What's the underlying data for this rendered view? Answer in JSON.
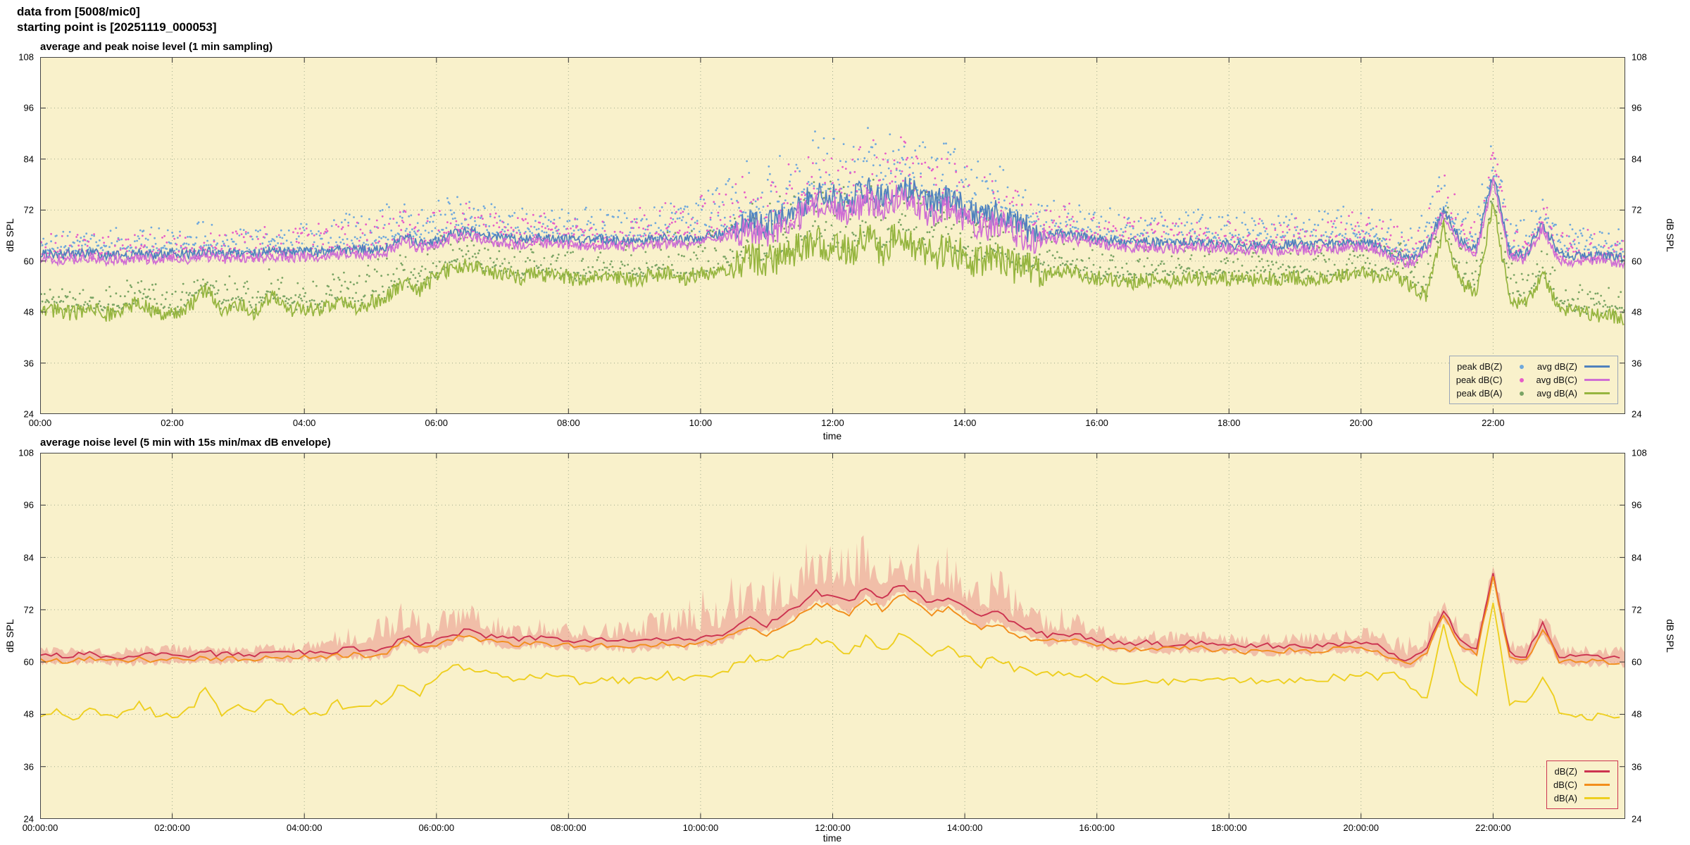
{
  "header": {
    "line1": "data from [5008/mic0]",
    "line2": "starting point is [20251119_000053]"
  },
  "colors": {
    "page_bg": "#ffffff",
    "plot_bg": "#f9f1cb",
    "grid": "#9fab8d",
    "frame": "#444444",
    "text": "#111111"
  },
  "chart_data": [
    {
      "type": "line+scatter",
      "title": "average and peak noise level (1 min sampling)",
      "xlabel": "time",
      "ylabel": "dB SPL",
      "ylim": [
        24,
        108
      ],
      "yticks": [
        24,
        36,
        48,
        60,
        72,
        84,
        96,
        108
      ],
      "xlim_hours": [
        0,
        24
      ],
      "xtick_hours": [
        0,
        2,
        4,
        6,
        8,
        10,
        12,
        14,
        16,
        18,
        20,
        22
      ],
      "xticks": [
        "00:00",
        "02:00",
        "04:00",
        "06:00",
        "08:00",
        "10:00",
        "12:00",
        "14:00",
        "16:00",
        "18:00",
        "20:00",
        "22:00"
      ],
      "grid": true,
      "x_start_hours": 0,
      "x_step_hours": 0.25,
      "daytime_noise": {
        "from": 10.5,
        "to": 15.2,
        "extra": 2.2
      },
      "peak_spread_by_hour": [
        5,
        5,
        6,
        6,
        6,
        9,
        8,
        6,
        6,
        7,
        11,
        14,
        14,
        14,
        12,
        9,
        6,
        6,
        6,
        6,
        7,
        9,
        8,
        6,
        6
      ],
      "series": [
        {
          "name": "avg dB(Z)",
          "type": "line",
          "color": "#4f81bd",
          "jitter": 1.2,
          "values": [
            61.8,
            61.5,
            61.6,
            62.0,
            61.4,
            61.2,
            61.8,
            61.5,
            61.9,
            61.6,
            62.3,
            61.7,
            62.0,
            61.8,
            62.4,
            62.0,
            62.3,
            62.1,
            62.6,
            63.0,
            62.6,
            63.2,
            66.0,
            64.2,
            64.8,
            66.5,
            67.2,
            66.0,
            65.4,
            65.0,
            65.6,
            65.1,
            65.0,
            64.6,
            65.0,
            64.8,
            64.5,
            65.0,
            65.4,
            65.0,
            65.6,
            66.2,
            67.5,
            70.0,
            68.5,
            70.5,
            73.0,
            76.0,
            75.0,
            73.5,
            77.0,
            74.5,
            78.0,
            76.0,
            73.5,
            75.0,
            72.5,
            70.0,
            71.5,
            69.0,
            67.5,
            66.0,
            66.5,
            66.0,
            65.2,
            64.6,
            64.2,
            64.5,
            64.0,
            64.2,
            64.6,
            64.1,
            64.0,
            63.6,
            64.0,
            63.6,
            64.0,
            63.7,
            64.0,
            64.2,
            64.5,
            64.0,
            61.5,
            60.5,
            63.5,
            72.0,
            65.0,
            63.0,
            80.5,
            62.0,
            61.5,
            69.0,
            61.5,
            61.0,
            61.3,
            61.0,
            60.8
          ]
        },
        {
          "name": "avg dB(C)",
          "type": "line",
          "color": "#cf6fd4",
          "jitter": 1.2,
          "values": [
            60.6,
            60.3,
            60.4,
            60.8,
            60.2,
            60.0,
            60.6,
            60.3,
            60.7,
            60.4,
            61.1,
            60.5,
            60.8,
            60.6,
            61.2,
            60.8,
            61.1,
            60.9,
            61.4,
            61.8,
            61.4,
            62.0,
            64.8,
            63.0,
            63.6,
            65.3,
            66.0,
            64.8,
            64.2,
            63.8,
            64.4,
            63.9,
            63.8,
            63.4,
            63.8,
            63.6,
            63.3,
            63.8,
            64.2,
            63.8,
            64.4,
            65.0,
            66.3,
            67.5,
            66.0,
            68.0,
            70.5,
            73.5,
            72.5,
            71.0,
            74.5,
            72.0,
            75.5,
            73.5,
            71.0,
            72.5,
            70.0,
            67.5,
            69.0,
            66.5,
            65.0,
            64.8,
            65.3,
            64.8,
            64.0,
            63.4,
            63.0,
            63.3,
            62.8,
            63.0,
            63.4,
            62.9,
            62.8,
            62.4,
            62.8,
            62.4,
            62.8,
            62.5,
            62.8,
            63.0,
            63.3,
            62.8,
            60.3,
            59.3,
            62.3,
            70.8,
            63.8,
            61.8,
            79.3,
            60.8,
            60.3,
            67.8,
            60.3,
            59.8,
            60.1,
            59.8,
            59.6
          ]
        },
        {
          "name": "avg dB(A)",
          "type": "line",
          "color": "#96b53f",
          "jitter": 1.8,
          "values": [
            48.0,
            48.4,
            47.6,
            48.8,
            47.4,
            48.2,
            50.5,
            48.0,
            47.6,
            49.0,
            53.5,
            48.5,
            50.0,
            47.8,
            52.0,
            48.5,
            49.0,
            48.2,
            50.5,
            49.0,
            50.0,
            51.5,
            55.0,
            53.0,
            56.5,
            58.5,
            59.0,
            57.5,
            57.0,
            56.0,
            57.0,
            56.5,
            56.0,
            55.5,
            56.5,
            56.0,
            55.5,
            56.5,
            57.0,
            56.0,
            57.0,
            57.5,
            59.0,
            61.0,
            59.5,
            61.5,
            63.0,
            65.0,
            63.5,
            62.0,
            65.5,
            62.5,
            66.0,
            64.0,
            61.5,
            63.0,
            61.0,
            59.5,
            61.0,
            58.5,
            58.0,
            57.0,
            57.5,
            57.0,
            56.0,
            55.5,
            55.0,
            55.5,
            55.2,
            55.5,
            56.0,
            55.5,
            55.8,
            55.4,
            56.0,
            55.6,
            56.2,
            55.8,
            56.4,
            56.6,
            57.0,
            56.5,
            57.5,
            54.0,
            52.0,
            68.0,
            55.0,
            52.5,
            74.0,
            51.0,
            50.0,
            57.0,
            49.0,
            48.0,
            47.5,
            47.2,
            46.8
          ]
        },
        {
          "name": "peak dB(Z)",
          "type": "scatter",
          "color": "#6fa8dc",
          "base": "avg dB(Z)",
          "offset": 1.0
        },
        {
          "name": "peak dB(C)",
          "type": "scatter",
          "color": "#e65cc8",
          "base": "avg dB(C)",
          "offset": 0.6
        },
        {
          "name": "peak dB(A)",
          "type": "scatter",
          "color": "#7aa464",
          "base": "avg dB(A)",
          "offset": 0.6
        }
      ],
      "legend": {
        "columns": 2,
        "border_color": "#9aa6b8",
        "entries": [
          {
            "label": "peak dB(Z)",
            "marker": "point",
            "color": "#6fa8dc"
          },
          {
            "label": "peak dB(C)",
            "marker": "point",
            "color": "#e65cc8"
          },
          {
            "label": "peak dB(A)",
            "marker": "point",
            "color": "#7aa464"
          },
          {
            "label": "avg dB(Z)",
            "marker": "line",
            "color": "#4f81bd"
          },
          {
            "label": "avg dB(C)",
            "marker": "line",
            "color": "#cf6fd4"
          },
          {
            "label": "avg dB(A)",
            "marker": "line",
            "color": "#96b53f"
          }
        ]
      }
    },
    {
      "type": "line+band",
      "title": "average noise level (5 min with 15s min/max dB envelope)",
      "xlabel": "time",
      "ylabel": "dB SPL",
      "ylim": [
        24,
        108
      ],
      "yticks": [
        24,
        36,
        48,
        60,
        72,
        84,
        96,
        108
      ],
      "xlim_hours": [
        0,
        24
      ],
      "xtick_hours": [
        0,
        2,
        4,
        6,
        8,
        10,
        12,
        14,
        16,
        18,
        20,
        22
      ],
      "xticks": [
        "00:00:00",
        "02:00:00",
        "04:00:00",
        "06:00:00",
        "08:00:00",
        "10:00:00",
        "12:00:00",
        "14:00:00",
        "16:00:00",
        "18:00:00",
        "20:00:00",
        "22:00:00"
      ],
      "grid": true,
      "x_start_hours": 0,
      "x_step_hours": 0.25,
      "envelope": {
        "color": "#e98b85",
        "opacity": 0.5,
        "amp_by_hour": [
          2,
          2,
          2.5,
          2,
          2.5,
          8,
          8,
          5,
          4,
          5,
          11,
          14,
          13,
          14,
          12,
          8,
          4,
          3,
          3,
          3,
          4,
          6,
          4,
          3,
          3
        ]
      },
      "series": [
        {
          "name": "dB(Z)",
          "type": "line",
          "color": "#cc3350",
          "jitter": 0.6,
          "values": [
            61.8,
            61.5,
            61.6,
            62.0,
            61.4,
            61.2,
            61.8,
            61.5,
            61.9,
            61.6,
            62.3,
            61.7,
            62.0,
            61.8,
            62.4,
            62.0,
            62.3,
            62.1,
            62.6,
            63.0,
            62.6,
            63.2,
            66.0,
            64.2,
            64.8,
            66.5,
            67.2,
            66.0,
            65.4,
            65.0,
            65.6,
            65.1,
            65.0,
            64.6,
            65.0,
            64.8,
            64.5,
            65.0,
            65.4,
            65.0,
            65.6,
            66.2,
            67.5,
            70.0,
            68.5,
            70.5,
            73.0,
            76.0,
            75.0,
            73.5,
            77.0,
            74.5,
            78.0,
            76.0,
            73.5,
            75.0,
            72.5,
            70.0,
            71.5,
            69.0,
            67.5,
            66.0,
            66.5,
            66.0,
            65.2,
            64.6,
            64.2,
            64.5,
            64.0,
            64.2,
            64.6,
            64.1,
            64.0,
            63.6,
            64.0,
            63.6,
            64.0,
            63.7,
            64.0,
            64.2,
            64.5,
            64.0,
            61.5,
            60.5,
            63.5,
            72.0,
            65.0,
            63.0,
            80.5,
            62.0,
            61.5,
            69.0,
            61.5,
            61.0,
            61.3,
            61.0,
            60.8
          ]
        },
        {
          "name": "dB(C)",
          "type": "line",
          "color": "#f28e1c",
          "jitter": 0.6,
          "values": [
            60.6,
            60.3,
            60.4,
            60.8,
            60.2,
            60.0,
            60.6,
            60.3,
            60.7,
            60.4,
            61.1,
            60.5,
            60.8,
            60.6,
            61.2,
            60.8,
            61.1,
            60.9,
            61.4,
            61.8,
            61.4,
            62.0,
            64.8,
            63.0,
            63.6,
            65.3,
            66.0,
            64.8,
            64.2,
            63.8,
            64.4,
            63.9,
            63.8,
            63.4,
            63.8,
            63.6,
            63.3,
            63.8,
            64.2,
            63.8,
            64.4,
            65.0,
            66.3,
            67.5,
            66.0,
            68.0,
            70.5,
            73.5,
            72.5,
            71.0,
            74.5,
            72.0,
            75.5,
            73.5,
            71.0,
            72.5,
            70.0,
            67.5,
            69.0,
            66.5,
            65.0,
            64.8,
            65.3,
            64.8,
            64.0,
            63.4,
            63.0,
            63.3,
            62.8,
            63.0,
            63.4,
            62.9,
            62.8,
            62.4,
            62.8,
            62.4,
            62.8,
            62.5,
            62.8,
            63.0,
            63.3,
            62.8,
            60.3,
            59.3,
            62.3,
            70.8,
            63.8,
            61.8,
            79.3,
            60.8,
            60.3,
            67.8,
            60.3,
            59.8,
            60.1,
            59.8,
            59.6
          ]
        },
        {
          "name": "dB(A)",
          "type": "line",
          "color": "#eecf1f",
          "jitter": 0.9,
          "values": [
            48.0,
            48.4,
            47.6,
            48.8,
            47.4,
            48.2,
            50.5,
            48.0,
            47.6,
            49.0,
            53.5,
            48.5,
            50.0,
            47.8,
            52.0,
            48.5,
            49.0,
            48.2,
            50.5,
            49.0,
            50.0,
            51.5,
            55.0,
            53.0,
            56.5,
            58.5,
            59.0,
            57.5,
            57.0,
            56.0,
            57.0,
            56.5,
            56.0,
            55.5,
            56.5,
            56.0,
            55.5,
            56.5,
            57.0,
            56.0,
            57.0,
            57.5,
            59.0,
            61.0,
            59.5,
            61.5,
            63.0,
            65.0,
            63.5,
            62.0,
            65.5,
            62.5,
            66.0,
            64.0,
            61.5,
            63.0,
            61.0,
            59.5,
            61.0,
            58.5,
            58.0,
            57.0,
            57.5,
            57.0,
            56.0,
            55.5,
            55.0,
            55.5,
            55.2,
            55.5,
            56.0,
            55.5,
            55.8,
            55.4,
            56.0,
            55.6,
            56.2,
            55.8,
            56.4,
            56.6,
            57.0,
            56.5,
            57.5,
            54.0,
            52.0,
            68.0,
            55.0,
            52.5,
            74.0,
            51.0,
            50.0,
            57.0,
            49.0,
            48.0,
            47.5,
            47.2,
            46.8
          ]
        }
      ],
      "legend": {
        "columns": 1,
        "border_color": "#cc3350",
        "entries": [
          {
            "label": "dB(Z)",
            "marker": "line",
            "color": "#cc3350"
          },
          {
            "label": "dB(C)",
            "marker": "line",
            "color": "#f28e1c"
          },
          {
            "label": "dB(A)",
            "marker": "line",
            "color": "#eecf1f"
          }
        ]
      }
    }
  ]
}
